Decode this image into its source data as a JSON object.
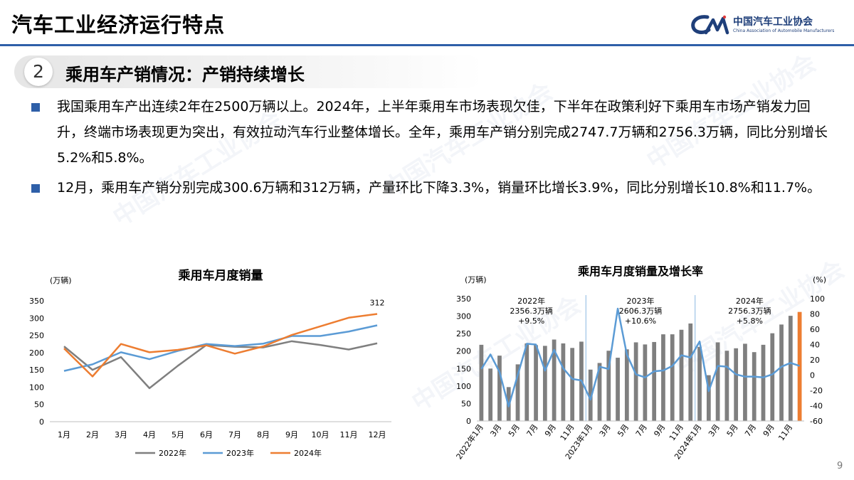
{
  "header": {
    "title": "汽车工业经济运行特点",
    "logo_text": "中国汽车工业协会",
    "logo_subtext": "China Association of Automobile Manufacturers",
    "rule_color": "#2E5FA8"
  },
  "section": {
    "number": "2",
    "title": "乘用车产销情况：产销持续增长"
  },
  "bullets": [
    "我国乘用车产出连续2年在2500万辆以上。2024年，上半年乘用车市场表现欠佳，下半年在政策利好下乘用车市场产销发力回升，终端市场表现更为突出，有效拉动汽车行业整体增长。全年，乘用车产销分别完成2747.7万辆和2756.3万辆，同比分别增长5.2%和5.8%。",
    "12月，乘用车产销分别完成300.6万辆和312万辆，产量环比下降3.3%，销量环比增长3.9%，同比分别增长10.8%和11.7%。"
  ],
  "page_number": "9",
  "chart_data": [
    {
      "type": "line",
      "title": "乘用车月度销量",
      "unit_label": "(万辆)",
      "categories": [
        "1月",
        "2月",
        "3月",
        "4月",
        "5月",
        "6月",
        "7月",
        "8月",
        "9月",
        "10月",
        "11月",
        "12月"
      ],
      "ylim": [
        0,
        350
      ],
      "yticks": [
        0,
        50,
        100,
        150,
        200,
        250,
        300,
        350
      ],
      "series": [
        {
          "name": "2022年",
          "color": "#7F7F7F",
          "values": [
            218,
            150,
            187,
            97,
            162,
            222,
            217,
            215,
            233,
            222,
            209,
            227
          ]
        },
        {
          "name": "2023年",
          "color": "#5B9BD5",
          "values": [
            147,
            166,
            201,
            181,
            205,
            225,
            219,
            226,
            248,
            248,
            261,
            279
          ]
        },
        {
          "name": "2024年",
          "color": "#ED7D31",
          "values": [
            212,
            131,
            225,
            201,
            208,
            221,
            197,
            218,
            251,
            276,
            301,
            312
          ]
        }
      ],
      "end_label": "312",
      "legend_position": "bottom"
    },
    {
      "type": "bar",
      "title": "乘用车月度销量及增长率",
      "left_unit_label": "(万辆)",
      "right_unit_label": "(%)",
      "x_tick_labels": [
        "2022年1月",
        "3月",
        "5月",
        "7月",
        "9月",
        "11月",
        "2023年1月",
        "3月",
        "5月",
        "7月",
        "9月",
        "11月",
        "2024年1月",
        "3月",
        "5月",
        "7月",
        "9月",
        "11月"
      ],
      "ylim_left": [
        0,
        350
      ],
      "yticks_left": [
        0,
        50,
        100,
        150,
        200,
        250,
        300,
        350
      ],
      "ylim_right": [
        -60,
        100
      ],
      "yticks_right": [
        -60,
        -40,
        -20,
        0,
        20,
        40,
        60,
        80,
        100
      ],
      "series": [
        {
          "type": "bar",
          "axis": "left",
          "color": "#7F7F7F",
          "highlight_color": "#ED7D31",
          "values": [
            218,
            150,
            187,
            97,
            162,
            222,
            217,
            215,
            233,
            222,
            209,
            227,
            147,
            166,
            201,
            181,
            205,
            225,
            219,
            226,
            248,
            248,
            261,
            279,
            212,
            131,
            225,
            201,
            208,
            221,
            197,
            218,
            251,
            276,
            301,
            312
          ]
        },
        {
          "type": "line",
          "axis": "right",
          "color": "#5B9BD5",
          "values": [
            8,
            27,
            4,
            -41,
            0,
            41,
            40,
            6,
            33,
            9,
            -5,
            -7,
            -32,
            11,
            8,
            87,
            27,
            1,
            -3,
            5,
            6,
            12,
            26,
            23,
            44,
            -21,
            12,
            11,
            1,
            -2,
            -2,
            -3,
            1,
            11,
            16,
            12
          ]
        }
      ],
      "annotations": [
        {
          "year": "2022年",
          "total": "2356.3万辆",
          "growth": "+9.5%"
        },
        {
          "year": "2023年",
          "total": "2606.3万辆",
          "growth": "+10.6%"
        },
        {
          "year": "2024年",
          "total": "2756.3万辆",
          "growth": "+5.8%"
        }
      ]
    }
  ]
}
